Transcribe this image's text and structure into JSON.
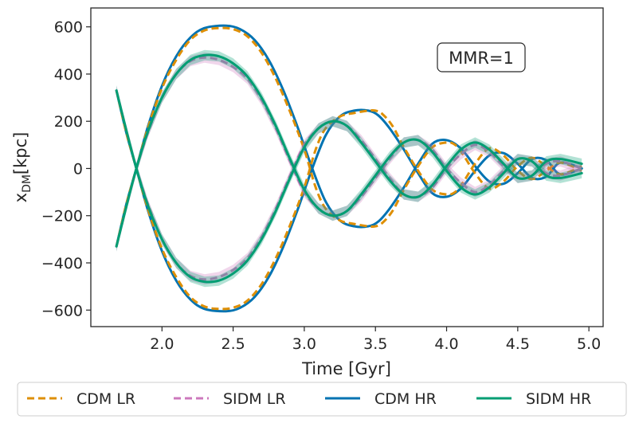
{
  "chart_data": {
    "type": "line",
    "title": "",
    "xlabel": "Time [Gyr]",
    "ylabel_main": "x",
    "ylabel_sub": "DM",
    "ylabel_tail": "[kpc]",
    "xlim": [
      1.5,
      5.1
    ],
    "ylim": [
      -670,
      680
    ],
    "xticks": [
      2.0,
      2.5,
      3.0,
      3.5,
      4.0,
      4.5,
      5.0
    ],
    "xtick_labels": [
      "2.0",
      "2.5",
      "3.0",
      "3.5",
      "4.0",
      "4.5",
      "5.0"
    ],
    "yticks": [
      -600,
      -400,
      -200,
      0,
      200,
      400,
      600
    ],
    "ytick_labels": [
      "−600",
      "−400",
      "−200",
      "0",
      "200",
      "400",
      "600"
    ],
    "annotation": "MMR=1",
    "legend_position": "below",
    "colors": {
      "cdm_lr": "#de8f05",
      "sidm_lr": "#cc78bc",
      "cdm_hr": "#0173b2",
      "sidm_hr": "#029e73"
    },
    "series": [
      {
        "name": "CDM LR",
        "style": "dashed",
        "color_key": "cdm_lr",
        "branches": [
          {
            "x": [
              1.68,
              1.75,
              1.82,
              1.9,
              2.0,
              2.1,
              2.2,
              2.3,
              2.4,
              2.5,
              2.6,
              2.7,
              2.8,
              2.9,
              3.0,
              3.08,
              3.15,
              3.25,
              3.35,
              3.45,
              3.5,
              3.55,
              3.62,
              3.7,
              3.8,
              3.9,
              4.0,
              4.06,
              4.12,
              4.2,
              4.3,
              4.4,
              4.5,
              4.6,
              4.7,
              4.8,
              4.95
            ],
            "y": [
              -330,
              -150,
              0,
              170,
              340,
              460,
              545,
              585,
              595,
              590,
              560,
              490,
              380,
              240,
              80,
              -80,
              -170,
              -220,
              -235,
              -245,
              -245,
              -230,
              -180,
              -90,
              10,
              90,
              110,
              100,
              55,
              -20,
              -85,
              -55,
              10,
              45,
              10,
              -25,
              10
            ]
          },
          {
            "x": [
              1.68,
              1.75,
              1.82,
              1.9,
              2.0,
              2.1,
              2.2,
              2.3,
              2.4,
              2.5,
              2.6,
              2.7,
              2.8,
              2.9,
              3.0,
              3.08,
              3.15,
              3.25,
              3.35,
              3.45,
              3.5,
              3.55,
              3.62,
              3.7,
              3.8,
              3.9,
              4.0,
              4.06,
              4.12,
              4.2,
              4.3,
              4.4,
              4.5,
              4.6,
              4.7,
              4.8,
              4.95
            ],
            "y": [
              330,
              150,
              0,
              -170,
              -340,
              -460,
              -545,
              -585,
              -595,
              -590,
              -560,
              -490,
              -380,
              -240,
              -80,
              80,
              170,
              220,
              235,
              245,
              245,
              230,
              180,
              90,
              -10,
              -90,
              -110,
              -100,
              -55,
              20,
              85,
              55,
              -10,
              -45,
              -10,
              25,
              -10
            ]
          }
        ]
      },
      {
        "name": "SIDM LR",
        "style": "dashed",
        "color_key": "sidm_lr",
        "branches": [
          {
            "x": [
              1.68,
              1.75,
              1.82,
              1.9,
              2.0,
              2.1,
              2.2,
              2.3,
              2.4,
              2.5,
              2.6,
              2.7,
              2.8,
              2.9,
              3.0,
              3.1,
              3.2,
              3.3,
              3.4,
              3.5,
              3.6,
              3.7,
              3.8,
              3.9,
              4.0,
              4.1,
              4.2,
              4.3,
              4.4,
              4.5,
              4.6,
              4.7,
              4.8,
              4.95
            ],
            "y": [
              330,
              160,
              0,
              -150,
              -300,
              -400,
              -455,
              -470,
              -460,
              -430,
              -380,
              -290,
              -170,
              -30,
              100,
              170,
              200,
              180,
              120,
              40,
              -40,
              -110,
              -120,
              -80,
              0,
              60,
              100,
              70,
              10,
              -40,
              -30,
              20,
              30,
              0
            ]
          },
          {
            "x": [
              1.68,
              1.75,
              1.82,
              1.9,
              2.0,
              2.1,
              2.2,
              2.3,
              2.4,
              2.5,
              2.6,
              2.7,
              2.8,
              2.9,
              3.0,
              3.1,
              3.2,
              3.3,
              3.4,
              3.5,
              3.6,
              3.7,
              3.8,
              3.9,
              4.0,
              4.1,
              4.2,
              4.3,
              4.4,
              4.5,
              4.6,
              4.7,
              4.8,
              4.95
            ],
            "y": [
              -330,
              -160,
              0,
              150,
              300,
              400,
              455,
              470,
              460,
              430,
              380,
              290,
              170,
              30,
              -100,
              -170,
              -200,
              -180,
              -120,
              -40,
              40,
              110,
              120,
              80,
              0,
              -60,
              -100,
              -70,
              -10,
              40,
              30,
              -20,
              -30,
              0
            ]
          }
        ]
      },
      {
        "name": "CDM HR",
        "style": "solid",
        "color_key": "cdm_hr",
        "branches": [
          {
            "x": [
              1.68,
              1.75,
              1.82,
              1.9,
              2.0,
              2.1,
              2.2,
              2.3,
              2.45,
              2.55,
              2.65,
              2.75,
              2.85,
              2.95,
              3.05,
              3.15,
              3.25,
              3.35,
              3.45,
              3.52,
              3.6,
              3.7,
              3.8,
              3.9,
              4.0,
              4.1,
              4.2,
              4.3,
              4.4,
              4.5,
              4.6,
              4.7,
              4.8,
              4.95
            ],
            "y": [
              -330,
              -150,
              0,
              175,
              350,
              475,
              555,
              595,
              605,
              590,
              545,
              460,
              335,
              180,
              10,
              -140,
              -220,
              -245,
              -245,
              -225,
              -170,
              -80,
              20,
              105,
              120,
              85,
              10,
              -55,
              -65,
              -20,
              40,
              35,
              -25,
              0
            ]
          },
          {
            "x": [
              1.68,
              1.75,
              1.82,
              1.9,
              2.0,
              2.1,
              2.2,
              2.3,
              2.45,
              2.55,
              2.65,
              2.75,
              2.85,
              2.95,
              3.05,
              3.15,
              3.25,
              3.35,
              3.45,
              3.52,
              3.6,
              3.7,
              3.8,
              3.9,
              4.0,
              4.1,
              4.2,
              4.3,
              4.4,
              4.5,
              4.6,
              4.7,
              4.8,
              4.95
            ],
            "y": [
              330,
              150,
              0,
              -175,
              -350,
              -475,
              -555,
              -595,
              -605,
              -590,
              -545,
              -460,
              -335,
              -180,
              -10,
              140,
              220,
              245,
              245,
              225,
              170,
              80,
              -20,
              -105,
              -120,
              -85,
              -10,
              55,
              65,
              20,
              -40,
              -35,
              25,
              0
            ]
          }
        ]
      },
      {
        "name": "SIDM HR",
        "style": "solid",
        "color_key": "sidm_hr",
        "branches": [
          {
            "x": [
              1.68,
              1.75,
              1.82,
              1.9,
              2.0,
              2.1,
              2.2,
              2.3,
              2.4,
              2.5,
              2.6,
              2.7,
              2.8,
              2.9,
              3.0,
              3.1,
              3.2,
              3.3,
              3.4,
              3.5,
              3.6,
              3.7,
              3.8,
              3.9,
              4.0,
              4.1,
              4.2,
              4.3,
              4.4,
              4.5,
              4.6,
              4.7,
              4.8,
              4.95
            ],
            "y": [
              330,
              160,
              0,
              -155,
              -300,
              -400,
              -460,
              -480,
              -475,
              -445,
              -390,
              -300,
              -180,
              -40,
              90,
              170,
              200,
              180,
              110,
              30,
              -50,
              -110,
              -120,
              -70,
              10,
              80,
              110,
              80,
              20,
              -40,
              -30,
              30,
              40,
              20
            ]
          },
          {
            "x": [
              1.68,
              1.75,
              1.82,
              1.9,
              2.0,
              2.1,
              2.2,
              2.3,
              2.4,
              2.5,
              2.6,
              2.7,
              2.8,
              2.9,
              3.0,
              3.1,
              3.2,
              3.3,
              3.4,
              3.5,
              3.6,
              3.7,
              3.8,
              3.9,
              4.0,
              4.1,
              4.2,
              4.3,
              4.4,
              4.5,
              4.6,
              4.7,
              4.8,
              4.95
            ],
            "y": [
              -330,
              -160,
              0,
              155,
              300,
              400,
              460,
              480,
              475,
              445,
              390,
              300,
              180,
              40,
              -90,
              -170,
              -200,
              -180,
              -110,
              -30,
              50,
              110,
              120,
              70,
              -10,
              -80,
              -110,
              -80,
              -20,
              40,
              30,
              -30,
              -40,
              -20
            ]
          }
        ]
      }
    ]
  }
}
